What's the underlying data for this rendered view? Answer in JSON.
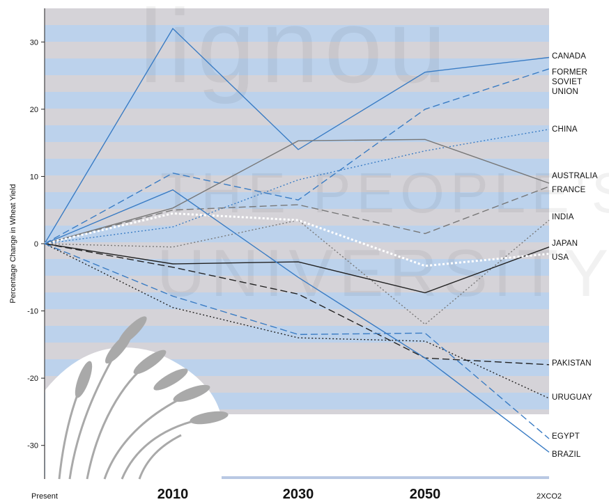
{
  "chart_data": {
    "type": "line",
    "categories": [
      "Present",
      "2010",
      "2030",
      "2050",
      "2XCO2"
    ],
    "title": "",
    "xlabel": "",
    "ylabel": "Percentage Change in Wheat Yield",
    "ylim": [
      -35,
      35
    ],
    "yticks": [
      30,
      20,
      10,
      0,
      -10,
      -20,
      -30
    ],
    "grid": false,
    "legend": "labels at right end of lines",
    "watermark": {
      "lines": [
        "lignou",
        "THE PEOPLE'S",
        "UNIVERSITY"
      ]
    },
    "series": [
      {
        "name": "CANADA",
        "values": [
          0,
          32,
          14,
          25.5,
          27.7
        ],
        "color": "#3a7cc4",
        "style": "solid"
      },
      {
        "name": "FORMER SOVIET UNION",
        "values": [
          0,
          10.5,
          6.5,
          20,
          26
        ],
        "color": "#3a7cc4",
        "style": "dashed"
      },
      {
        "name": "CHINA",
        "values": [
          0,
          2.5,
          9.5,
          13.8,
          17
        ],
        "color": "#3a7cc4",
        "style": "dotted"
      },
      {
        "name": "AUSTRALIA",
        "values": [
          0,
          5.3,
          15.3,
          15.5,
          9
        ],
        "color": "#777777",
        "style": "solid"
      },
      {
        "name": "FRANCE",
        "values": [
          0,
          5,
          5.8,
          1.5,
          8.5
        ],
        "color": "#777777",
        "style": "dashed"
      },
      {
        "name": "INDIA",
        "values": [
          0,
          -0.5,
          3.5,
          -12,
          3.5
        ],
        "color": "#777777",
        "style": "dotted"
      },
      {
        "name": "JAPAN",
        "values": [
          0,
          -3,
          -2.7,
          -7.3,
          -0.5
        ],
        "color": "#222222",
        "style": "solid"
      },
      {
        "name": "USA",
        "values": [
          0,
          4.5,
          3.5,
          -3.3,
          -1.5
        ],
        "color": "#ffffff",
        "style": "dotted-thick"
      },
      {
        "name": "PAKISTAN",
        "values": [
          0,
          -3.5,
          -7.5,
          -17,
          -18
        ],
        "color": "#222222",
        "style": "dashed"
      },
      {
        "name": "URUGUAY",
        "values": [
          0,
          -9.5,
          -14,
          -14.5,
          -23
        ],
        "color": "#222222",
        "style": "dotted"
      },
      {
        "name": "EGYPT",
        "values": [
          0,
          -7.8,
          -13.5,
          -13.3,
          -29
        ],
        "color": "#3a7cc4",
        "style": "dashed"
      },
      {
        "name": "BRAZIL",
        "values": [
          0,
          8,
          -5,
          -17,
          -31
        ],
        "color": "#3a7cc4",
        "style": "solid"
      }
    ],
    "label_lines": {
      "CANADA": [
        "CANADA"
      ],
      "FORMER SOVIET UNION": [
        "FORMER",
        "SOVIET",
        "UNION"
      ],
      "CHINA": [
        "CHINA"
      ],
      "AUSTRALIA": [
        "AUSTRALIA"
      ],
      "FRANCE": [
        "FRANCE"
      ],
      "INDIA": [
        "INDIA"
      ],
      "JAPAN": [
        "JAPAN"
      ],
      "USA": [
        "USA"
      ],
      "PAKISTAN": [
        "PAKISTAN"
      ],
      "URUGUAY": [
        "URUGUAY"
      ],
      "EGYPT": [
        "EGYPT"
      ],
      "BRAZIL": [
        "BRAZIL"
      ]
    }
  }
}
